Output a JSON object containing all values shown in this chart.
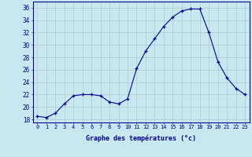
{
  "hours": [
    0,
    1,
    2,
    3,
    4,
    5,
    6,
    7,
    8,
    9,
    10,
    11,
    12,
    13,
    14,
    15,
    16,
    17,
    18,
    19,
    20,
    21,
    22,
    23
  ],
  "temperatures": [
    18.5,
    18.3,
    19.0,
    20.5,
    21.8,
    22.0,
    22.0,
    21.8,
    20.8,
    20.5,
    21.3,
    26.2,
    29.0,
    31.0,
    33.0,
    34.5,
    35.5,
    35.8,
    35.8,
    32.0,
    27.3,
    24.7,
    23.0,
    22.0
  ],
  "line_color": "#00008B",
  "marker": "+",
  "marker_color": "#00008B",
  "bg_color": "#c8e8f0",
  "grid_color": "#b0c8d0",
  "xlabel": "Graphe des températures (°c)",
  "ylabel_ticks": [
    18,
    20,
    22,
    24,
    26,
    28,
    30,
    32,
    34,
    36
  ],
  "xlim": [
    -0.5,
    23.5
  ],
  "ylim": [
    17.5,
    37.0
  ],
  "xlabel_color": "#00008B",
  "tick_color": "#00008B",
  "axis_color": "#00008B"
}
